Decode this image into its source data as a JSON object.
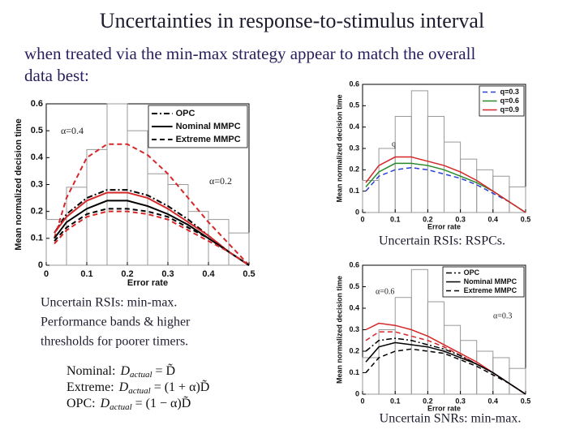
{
  "title": "Uncertainties in response-to-stimulus interval",
  "subtitle_lines": [
    "when treated via the min-max strategy appear to match the overall",
    "data best:"
  ],
  "caption_rspc": "Uncertain RSIs: RSPCs.",
  "caption_minmax_lines": [
    "Uncertain RSIs: min-max.",
    "Performance bands & higher",
    "thresholds for poorer timers."
  ],
  "caption_snr": "Uncertain SNRs: min-max.",
  "equations": [
    {
      "label": "Nominal:",
      "lhs": "D",
      "sub": "actual",
      "rhs": "= D̃"
    },
    {
      "label": "Extreme:",
      "lhs": "D",
      "sub": "actual",
      "rhs": "= (1 + α)D̃"
    },
    {
      "label": "OPC:",
      "lhs": "D",
      "sub": "actual",
      "rhs": "= (1 − α)D̃"
    }
  ],
  "chart_data": [
    {
      "type": "line",
      "xlabel": "Error rate",
      "ylabel": "Mean normalized decision time",
      "xlim": [
        0,
        0.5
      ],
      "ylim": [
        0,
        0.6
      ],
      "xticks": [
        0,
        0.1,
        0.2,
        0.3,
        0.4,
        0.5
      ],
      "yticks": [
        0,
        0.1,
        0.2,
        0.3,
        0.4,
        0.5,
        0.6
      ],
      "legend": "upper right",
      "annotations": [
        "α=0.4",
        "α=0.2"
      ],
      "bins": [
        0,
        0.05,
        0.1,
        0.15,
        0.2,
        0.25,
        0.3,
        0.35,
        0.4,
        0.45,
        0.5
      ],
      "bar_values": [
        0.17,
        0.29,
        0.43,
        0.6,
        0.5,
        0.34,
        0.3,
        0.2,
        0.17,
        0.12
      ],
      "x": [
        0.02,
        0.05,
        0.1,
        0.15,
        0.2,
        0.25,
        0.3,
        0.35,
        0.4,
        0.45,
        0.5
      ],
      "series": [
        {
          "color": "#d62728",
          "dash": "dashed",
          "values": [
            0.1,
            0.25,
            0.4,
            0.45,
            0.45,
            0.41,
            0.34,
            0.25,
            0.16,
            0.08,
            0
          ]
        },
        {
          "name": "OPC",
          "color": "#000000",
          "dash": "dashdot",
          "values": [
            0.12,
            0.19,
            0.25,
            0.28,
            0.28,
            0.26,
            0.22,
            0.17,
            0.11,
            0.05,
            0
          ]
        },
        {
          "color": "#d62728",
          "dash": "solid",
          "values": [
            0.12,
            0.18,
            0.24,
            0.27,
            0.27,
            0.25,
            0.21,
            0.16,
            0.11,
            0.05,
            0
          ]
        },
        {
          "name": "Nominal MMPC",
          "color": "#000000",
          "dash": "solid",
          "values": [
            0.1,
            0.16,
            0.21,
            0.24,
            0.24,
            0.22,
            0.19,
            0.15,
            0.1,
            0.05,
            0
          ]
        },
        {
          "name": "Extreme MMPC",
          "color": "#000000",
          "dash": "dashed",
          "values": [
            0.09,
            0.14,
            0.19,
            0.21,
            0.21,
            0.2,
            0.18,
            0.14,
            0.1,
            0.05,
            0
          ]
        },
        {
          "color": "#d62728",
          "dash": "dashed",
          "values": [
            0.08,
            0.13,
            0.18,
            0.2,
            0.2,
            0.19,
            0.17,
            0.13,
            0.09,
            0.05,
            0
          ]
        }
      ]
    },
    {
      "type": "line",
      "xlabel": "Error rate",
      "ylabel": "Mean normalized decision time",
      "xlim": [
        0,
        0.5
      ],
      "ylim": [
        0,
        0.6
      ],
      "xticks": [
        0,
        0.1,
        0.2,
        0.3,
        0.4,
        0.5
      ],
      "yticks": [
        0,
        0.1,
        0.2,
        0.3,
        0.4,
        0.5,
        0.6
      ],
      "legend": "upper right",
      "annotations": [
        "q"
      ],
      "bins": [
        0,
        0.05,
        0.1,
        0.15,
        0.2,
        0.25,
        0.3,
        0.35,
        0.4,
        0.45,
        0.5
      ],
      "bar_values": [
        0.15,
        0.3,
        0.45,
        0.57,
        0.45,
        0.33,
        0.25,
        0.2,
        0.17,
        0.12
      ],
      "x": [
        0.01,
        0.05,
        0.1,
        0.15,
        0.2,
        0.25,
        0.3,
        0.35,
        0.4,
        0.45,
        0.5
      ],
      "series": [
        {
          "name": "q=0.3",
          "color": "#2b3fd6",
          "dash": "dashed",
          "values": [
            0.1,
            0.17,
            0.2,
            0.21,
            0.2,
            0.18,
            0.16,
            0.13,
            0.09,
            0.05,
            0
          ]
        },
        {
          "name": "q=0.6",
          "color": "#2a8a2a",
          "dash": "solid",
          "values": [
            0.12,
            0.19,
            0.23,
            0.23,
            0.22,
            0.2,
            0.17,
            0.14,
            0.1,
            0.05,
            0
          ]
        },
        {
          "name": "q=0.9",
          "color": "#d62728",
          "dash": "solid",
          "values": [
            0.14,
            0.22,
            0.26,
            0.26,
            0.24,
            0.22,
            0.19,
            0.15,
            0.1,
            0.05,
            0
          ]
        }
      ]
    },
    {
      "type": "line",
      "xlabel": "Error rate",
      "ylabel": "Mean normalized decision time",
      "xlim": [
        0,
        0.5
      ],
      "ylim": [
        0,
        0.6
      ],
      "xticks": [
        0,
        0.1,
        0.2,
        0.3,
        0.4,
        0.5
      ],
      "yticks": [
        0,
        0.1,
        0.2,
        0.3,
        0.4,
        0.5,
        0.6
      ],
      "legend": "upper right",
      "annotations": [
        "α=0.6",
        "α=0.3"
      ],
      "bins": [
        0,
        0.05,
        0.1,
        0.15,
        0.2,
        0.25,
        0.3,
        0.35,
        0.4,
        0.45,
        0.5
      ],
      "bar_values": [
        0.17,
        0.3,
        0.45,
        0.58,
        0.43,
        0.32,
        0.25,
        0.2,
        0.17,
        0.12
      ],
      "x": [
        0.01,
        0.05,
        0.1,
        0.15,
        0.2,
        0.25,
        0.3,
        0.35,
        0.4,
        0.45,
        0.5
      ],
      "series": [
        {
          "color": "#d62728",
          "dash": "solid",
          "values": [
            0.3,
            0.33,
            0.32,
            0.3,
            0.27,
            0.23,
            0.19,
            0.15,
            0.1,
            0.05,
            0
          ]
        },
        {
          "color": "#d62728",
          "dash": "dashed",
          "values": [
            0.25,
            0.29,
            0.29,
            0.27,
            0.25,
            0.22,
            0.18,
            0.14,
            0.1,
            0.05,
            0
          ]
        },
        {
          "name": "OPC",
          "color": "#000000",
          "dash": "dashdot",
          "values": [
            0.2,
            0.25,
            0.26,
            0.25,
            0.23,
            0.21,
            0.18,
            0.14,
            0.1,
            0.05,
            0
          ]
        },
        {
          "name": "Nominal MMPC",
          "color": "#000000",
          "dash": "solid",
          "values": [
            0.15,
            0.22,
            0.24,
            0.23,
            0.22,
            0.2,
            0.17,
            0.14,
            0.1,
            0.05,
            0
          ]
        },
        {
          "name": "Extreme MMPC",
          "color": "#000000",
          "dash": "dashed",
          "values": [
            0.1,
            0.17,
            0.2,
            0.21,
            0.2,
            0.19,
            0.16,
            0.13,
            0.09,
            0.05,
            0
          ]
        }
      ]
    }
  ]
}
